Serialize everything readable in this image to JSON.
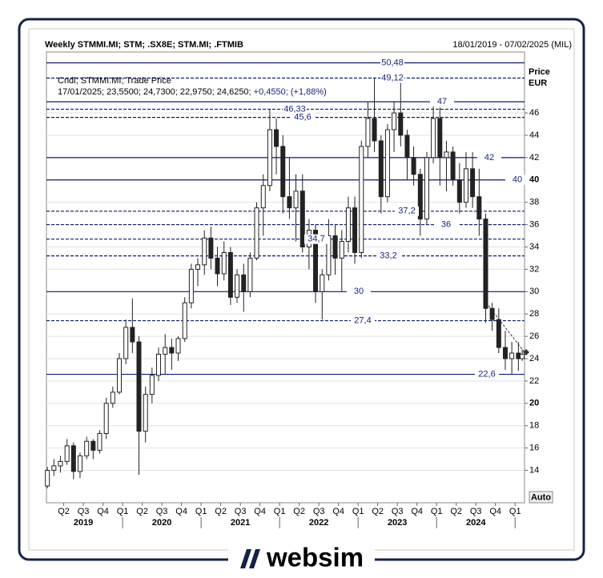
{
  "chart_data": {
    "type": "candlestick",
    "title": "Weekly STMMI.MI; STM; .SX8E; STM.MI; .FTMIB",
    "subtitle": "18/01/2019 - 07/02/2025 (MIL)",
    "info_header": "Cndl; STMMI.MI; Trade Price",
    "info_values": "17/01/2025; 23,5500; 24,7300; 22,9750; 24,6250;",
    "info_change": "+0,4550; (+1,88%)",
    "y_label": "Price",
    "y_unit": "EUR",
    "grid": true,
    "major_ytick_step": 20,
    "up_color": "#ffffff",
    "down_color": "#222222",
    "outline_color": "#222222",
    "level_color": "#0d1a78",
    "ylim": [
      11.1,
      51.45
    ],
    "yticks": [
      14,
      16,
      18,
      20,
      22,
      24,
      26,
      28,
      30,
      32,
      34,
      36,
      38,
      40,
      42,
      44,
      46
    ],
    "xlim": [
      2019.03,
      2025.12
    ],
    "xticks": [
      {
        "value": 2019.25,
        "label": "Q2"
      },
      {
        "value": 2019.5,
        "label": "Q3"
      },
      {
        "value": 2019.75,
        "label": "Q4"
      },
      {
        "value": 2020,
        "label": "Q1"
      },
      {
        "value": 2020.25,
        "label": "Q2"
      },
      {
        "value": 2020.5,
        "label": "Q3"
      },
      {
        "value": 2020.75,
        "label": "Q4"
      },
      {
        "value": 2021,
        "label": "Q1"
      },
      {
        "value": 2021.25,
        "label": "Q2"
      },
      {
        "value": 2021.5,
        "label": "Q3"
      },
      {
        "value": 2021.75,
        "label": "Q4"
      },
      {
        "value": 2022,
        "label": "Q1"
      },
      {
        "value": 2022.25,
        "label": "Q2"
      },
      {
        "value": 2022.5,
        "label": "Q3"
      },
      {
        "value": 2022.75,
        "label": "Q4"
      },
      {
        "value": 2023,
        "label": "Q1"
      },
      {
        "value": 2023.25,
        "label": "Q2"
      },
      {
        "value": 2023.5,
        "label": "Q3"
      },
      {
        "value": 2023.75,
        "label": "Q4"
      },
      {
        "value": 2024,
        "label": "Q1"
      },
      {
        "value": 2024.25,
        "label": "Q2"
      },
      {
        "value": 2024.5,
        "label": "Q3"
      },
      {
        "value": 2024.75,
        "label": "Q4"
      },
      {
        "value": 2025,
        "label": "Q1"
      }
    ],
    "years": [
      2019,
      2020,
      2021,
      2022,
      2023,
      2024
    ],
    "levels": [
      {
        "value": 50.48,
        "label": "50,48",
        "style": "solid"
      },
      {
        "value": 49.12,
        "label": "49,12",
        "style": "dashed"
      },
      {
        "value": 47,
        "label": "47",
        "style": "solid"
      },
      {
        "value": 46.33,
        "label": "46,33",
        "style": "dashed"
      },
      {
        "value": 45.6,
        "label": "45,6",
        "style": "dashed"
      },
      {
        "value": 42,
        "label": "42",
        "style": "solid"
      },
      {
        "value": 40,
        "label": "40",
        "style": "solid"
      },
      {
        "value": 37.2,
        "label": "37,2",
        "style": "dashed"
      },
      {
        "value": 36,
        "label": "36",
        "style": "dashed"
      },
      {
        "value": 34.7,
        "label": "34,7",
        "style": "dashed"
      },
      {
        "value": 33.2,
        "label": "33,2",
        "style": "dashed"
      },
      {
        "value": 30,
        "label": "30",
        "style": "solid"
      },
      {
        "value": 27.4,
        "label": "27,4",
        "style": "dashed"
      },
      {
        "value": 22.6,
        "label": "22,6",
        "style": "solid"
      }
    ],
    "x": [
      2019.042,
      2019.125,
      2019.208,
      2019.292,
      2019.375,
      2019.458,
      2019.542,
      2019.625,
      2019.708,
      2019.792,
      2019.875,
      2019.958,
      2020.042,
      2020.125,
      2020.208,
      2020.292,
      2020.375,
      2020.458,
      2020.542,
      2020.625,
      2020.708,
      2020.792,
      2020.875,
      2020.958,
      2021.042,
      2021.125,
      2021.208,
      2021.292,
      2021.375,
      2021.458,
      2021.542,
      2021.625,
      2021.708,
      2021.792,
      2021.875,
      2021.958,
      2022.042,
      2022.125,
      2022.208,
      2022.292,
      2022.375,
      2022.458,
      2022.542,
      2022.625,
      2022.708,
      2022.792,
      2022.875,
      2022.958,
      2023.042,
      2023.125,
      2023.208,
      2023.292,
      2023.375,
      2023.458,
      2023.542,
      2023.625,
      2023.708,
      2023.792,
      2023.875,
      2023.958,
      2024.042,
      2024.125,
      2024.208,
      2024.292,
      2024.375,
      2024.458,
      2024.542,
      2024.625,
      2024.708,
      2024.792,
      2024.875,
      2024.958,
      2025.042,
      2025.09
    ],
    "open": [
      12.6,
      14.0,
      14.4,
      14.8,
      16.2,
      13.9,
      15.3,
      16.6,
      15.8,
      17.3,
      20.0,
      21.0,
      24.0,
      26.8,
      25.5,
      17.5,
      20.8,
      22.5,
      24.4,
      25.0,
      24.5,
      25.8,
      29.0,
      32.0,
      32.4,
      34.8,
      33.0,
      31.6,
      33.5,
      29.5,
      31.5,
      30.0,
      33.0,
      37.5,
      39.5,
      44.5,
      43.0,
      38.5,
      37.5,
      39.0,
      34.0,
      35.5,
      30.0,
      31.5,
      35.0,
      33.0,
      34.5,
      37.5,
      33.5,
      43.0,
      45.5,
      43.5,
      38.5,
      44.5,
      46.0,
      44.0,
      42.0,
      40.5,
      36.5,
      42.0,
      45.5,
      42.0,
      42.5,
      40.0,
      38.0,
      41.0,
      38.5,
      36.5,
      28.5,
      27.5,
      25.0,
      24.0,
      24.5,
      24.0
    ],
    "high": [
      14.3,
      15.0,
      15.3,
      16.8,
      16.5,
      15.6,
      17.0,
      16.8,
      17.6,
      20.5,
      21.5,
      24.5,
      27.5,
      29.4,
      26.0,
      21.5,
      23.2,
      25.0,
      26.2,
      25.8,
      26.0,
      29.5,
      32.5,
      33.0,
      35.5,
      35.8,
      34.0,
      34.5,
      34.0,
      32.0,
      32.5,
      33.5,
      38.0,
      40.5,
      46.3,
      45.5,
      44.0,
      42.0,
      40.5,
      40.5,
      36.5,
      36.0,
      32.0,
      36.5,
      36.0,
      35.5,
      38.5,
      38.5,
      43.5,
      47.0,
      49.1,
      44.0,
      45.0,
      47.0,
      49.0,
      44.5,
      43.0,
      41.0,
      42.5,
      47.0,
      46.5,
      43.5,
      43.0,
      41.5,
      42.5,
      42.5,
      41.0,
      37.0,
      29.0,
      28.5,
      26.5,
      25.5,
      25.5,
      24.8
    ],
    "low": [
      12.4,
      13.5,
      13.8,
      14.5,
      13.2,
      13.3,
      15.0,
      15.0,
      15.5,
      16.8,
      19.6,
      20.8,
      23.5,
      24.5,
      13.6,
      16.5,
      20.0,
      22.0,
      22.6,
      23.0,
      23.8,
      25.5,
      28.5,
      30.5,
      31.5,
      32.0,
      30.5,
      31.0,
      28.8,
      29.0,
      28.2,
      29.5,
      32.8,
      35.0,
      39.0,
      40.5,
      37.0,
      36.5,
      34.5,
      33.5,
      32.0,
      29.0,
      27.5,
      31.0,
      31.5,
      30.0,
      33.5,
      32.5,
      33.0,
      42.0,
      42.5,
      37.0,
      38.0,
      42.5,
      43.0,
      40.0,
      39.5,
      35.0,
      36.0,
      41.5,
      39.5,
      39.0,
      39.5,
      37.0,
      37.5,
      37.5,
      35.0,
      27.2,
      26.5,
      24.5,
      23.0,
      22.6,
      22.9,
      23.8
    ],
    "close": [
      14.0,
      14.4,
      14.8,
      16.2,
      13.9,
      15.3,
      16.6,
      15.8,
      17.3,
      20.0,
      21.0,
      24.0,
      26.8,
      25.5,
      17.5,
      20.8,
      22.5,
      24.4,
      25.0,
      24.5,
      25.8,
      29.0,
      32.0,
      32.4,
      34.8,
      33.0,
      31.6,
      33.5,
      29.5,
      31.5,
      30.0,
      33.0,
      37.5,
      39.5,
      44.5,
      43.0,
      38.5,
      37.5,
      39.0,
      34.0,
      35.5,
      30.0,
      31.5,
      35.0,
      33.0,
      34.5,
      37.5,
      33.5,
      43.0,
      45.5,
      43.5,
      38.5,
      44.5,
      46.0,
      44.0,
      42.0,
      40.5,
      36.5,
      42.0,
      45.5,
      42.0,
      42.5,
      40.0,
      38.0,
      41.0,
      38.5,
      36.5,
      28.5,
      27.5,
      25.0,
      24.0,
      24.5,
      24.0,
      24.4
    ]
  },
  "controls": {
    "auto": "Auto"
  },
  "brand": "websim"
}
